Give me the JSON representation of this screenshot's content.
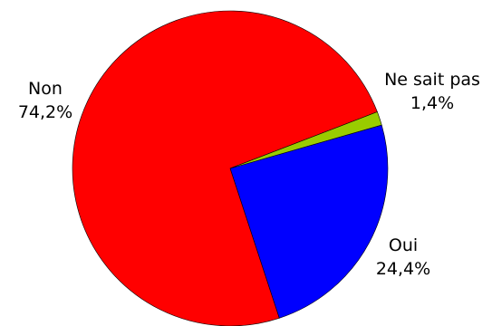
{
  "chart_data": {
    "type": "pie",
    "title": "",
    "legend": "none",
    "slices": [
      {
        "id": "oui",
        "label": "Oui",
        "value_label": "24,4%",
        "value": 24.4,
        "color": "#0000ff"
      },
      {
        "id": "non",
        "label": "Non",
        "value_label": "74,2%",
        "value": 74.2,
        "color": "#ff0000"
      },
      {
        "id": "nsp",
        "label": "Ne sait pas",
        "value_label": "1,4%",
        "value": 1.4,
        "color": "#99cc00"
      }
    ]
  }
}
